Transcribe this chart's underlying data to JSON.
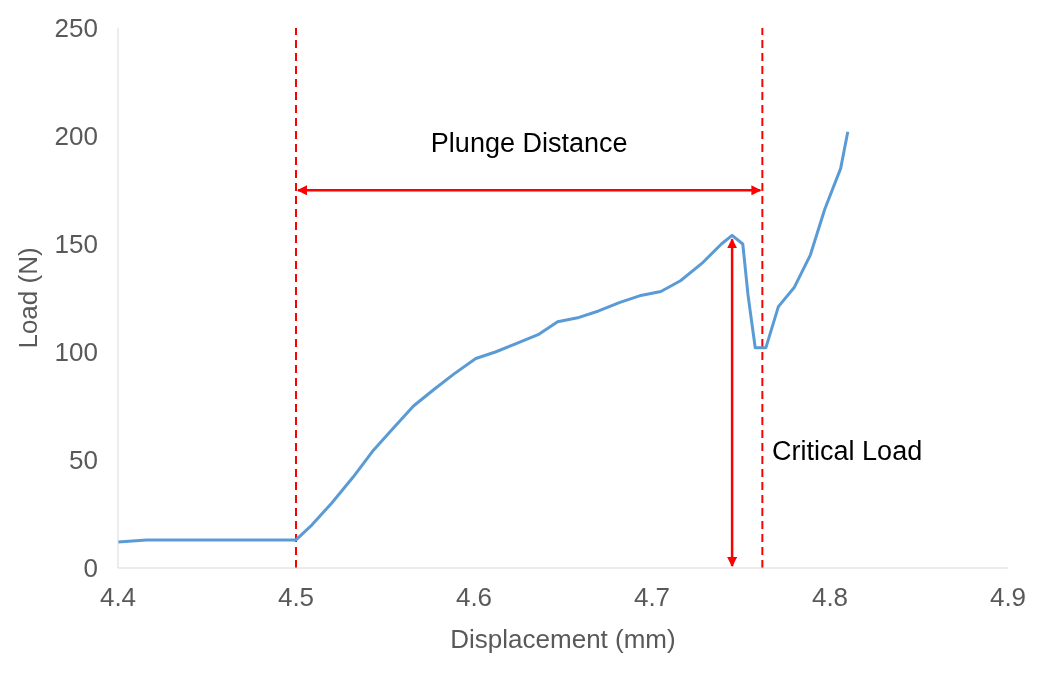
{
  "chart_data": {
    "type": "line",
    "xlabel": "Displacement (mm)",
    "ylabel": "Load (N)",
    "xlim": [
      4.4,
      4.9
    ],
    "xticks": [
      4.4,
      4.5,
      4.6,
      4.7,
      4.8,
      4.9
    ],
    "ylim": [
      0,
      250
    ],
    "yticks": [
      0,
      50,
      100,
      150,
      200,
      250
    ],
    "grid": false,
    "legend": false,
    "marker": "none",
    "line_style": "solid",
    "x": [
      4.4,
      4.416,
      4.5,
      4.509,
      4.52,
      4.532,
      4.543,
      4.555,
      4.566,
      4.578,
      4.589,
      4.601,
      4.612,
      4.624,
      4.636,
      4.647,
      4.659,
      4.67,
      4.682,
      4.693,
      4.705,
      4.716,
      4.728,
      4.739,
      4.745,
      4.751,
      4.754,
      4.758,
      4.764,
      4.771,
      4.78,
      4.789,
      4.797,
      4.806,
      4.81
    ],
    "series": [
      {
        "color": "#5b9bd5",
        "values": [
          12,
          13,
          13,
          20,
          30,
          42,
          54,
          65,
          75,
          83,
          90,
          97,
          100,
          104,
          108,
          114,
          116,
          119,
          123,
          126,
          128,
          133,
          141,
          150,
          154,
          150,
          126,
          102,
          102,
          121,
          130,
          145,
          166,
          185,
          202
        ]
      }
    ],
    "ref_lines": [
      {
        "axis": "x",
        "value": 4.5,
        "color": "#ff0000",
        "line_style": "dashed"
      },
      {
        "axis": "x",
        "value": 4.762,
        "color": "#ff0000",
        "line_style": "dashed"
      }
    ],
    "annotations": [
      "Plunge Distance",
      "Critical Load"
    ]
  }
}
